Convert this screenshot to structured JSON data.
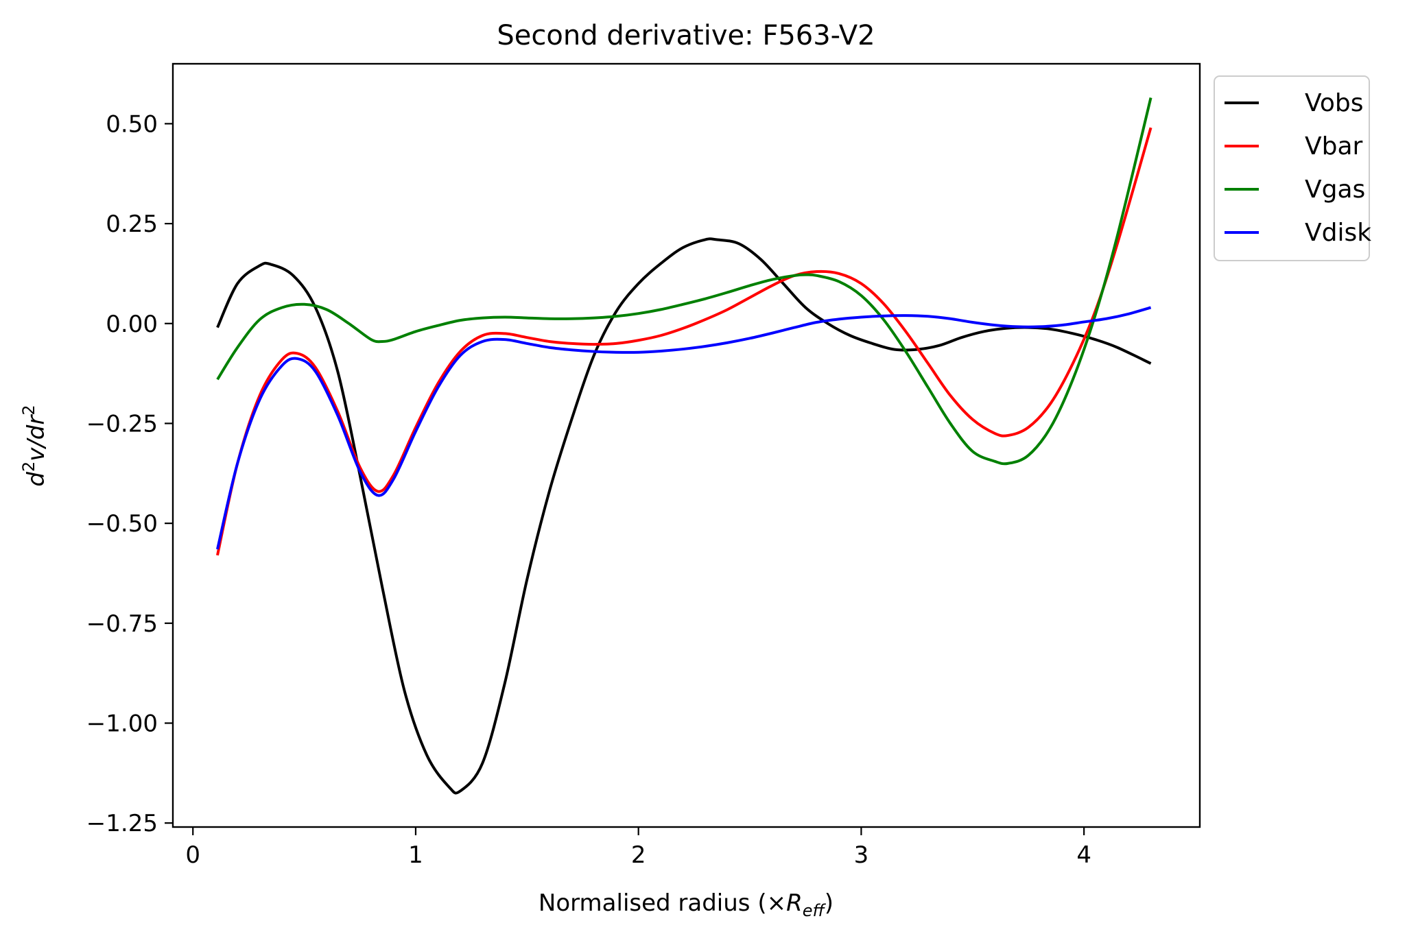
{
  "chart_data": {
    "type": "line",
    "title": "Second derivative: F563-V2",
    "xlabel": {
      "prefix": "Normalised radius (×",
      "var": "R",
      "sub": "eff",
      "suffix": ")"
    },
    "ylabel": {
      "d": "d",
      "sup1": "2",
      "mid": "v/dr",
      "sup2": "2"
    },
    "xlim": [
      -0.09,
      4.52
    ],
    "ylim": [
      -1.26,
      0.65
    ],
    "xticks": [
      0,
      1,
      2,
      3,
      4
    ],
    "xtick_labels": [
      "0",
      "1",
      "2",
      "3",
      "4"
    ],
    "yticks": [
      0.5,
      0.25,
      0.0,
      -0.25,
      -0.5,
      -0.75,
      -1.0,
      -1.25
    ],
    "ytick_labels": [
      "0.50",
      "0.25",
      "0.00",
      "−0.25",
      "−0.50",
      "−0.75",
      "−1.00",
      "−1.25"
    ],
    "grid": false,
    "legend_position": "outside-top-right",
    "series": [
      {
        "name": "Vobs",
        "color": "#000000",
        "x": [
          0.11,
          0.2,
          0.3,
          0.35,
          0.45,
          0.55,
          0.65,
          0.75,
          0.85,
          0.95,
          1.05,
          1.15,
          1.2,
          1.3,
          1.4,
          1.5,
          1.6,
          1.7,
          1.8,
          1.9,
          2.0,
          2.1,
          2.2,
          2.3,
          2.35,
          2.45,
          2.55,
          2.65,
          2.75,
          2.85,
          2.95,
          3.05,
          3.15,
          3.25,
          3.35,
          3.45,
          3.55,
          3.65,
          3.75,
          3.85,
          3.95,
          4.05,
          4.15,
          4.3
        ],
        "y": [
          -0.01,
          0.1,
          0.145,
          0.148,
          0.12,
          0.04,
          -0.12,
          -0.38,
          -0.66,
          -0.92,
          -1.08,
          -1.16,
          -1.17,
          -1.1,
          -0.9,
          -0.64,
          -0.42,
          -0.24,
          -0.08,
          0.03,
          0.1,
          0.15,
          0.19,
          0.21,
          0.21,
          0.2,
          0.16,
          0.1,
          0.04,
          0.0,
          -0.03,
          -0.05,
          -0.065,
          -0.065,
          -0.055,
          -0.035,
          -0.02,
          -0.012,
          -0.01,
          -0.014,
          -0.025,
          -0.04,
          -0.06,
          -0.1
        ]
      },
      {
        "name": "Vbar",
        "color": "#ff0000",
        "x": [
          0.11,
          0.2,
          0.3,
          0.4,
          0.47,
          0.55,
          0.65,
          0.75,
          0.83,
          0.9,
          1.0,
          1.1,
          1.2,
          1.3,
          1.4,
          1.5,
          1.6,
          1.7,
          1.8,
          1.9,
          2.0,
          2.1,
          2.2,
          2.3,
          2.4,
          2.5,
          2.6,
          2.7,
          2.8,
          2.9,
          3.0,
          3.1,
          3.2,
          3.3,
          3.4,
          3.5,
          3.6,
          3.66,
          3.75,
          3.85,
          3.95,
          4.05,
          4.15,
          4.3
        ],
        "y": [
          -0.58,
          -0.35,
          -0.18,
          -0.09,
          -0.075,
          -0.11,
          -0.22,
          -0.36,
          -0.42,
          -0.38,
          -0.26,
          -0.15,
          -0.07,
          -0.03,
          -0.025,
          -0.035,
          -0.045,
          -0.05,
          -0.052,
          -0.05,
          -0.042,
          -0.03,
          -0.012,
          0.01,
          0.035,
          0.065,
          0.095,
          0.12,
          0.13,
          0.125,
          0.1,
          0.05,
          -0.02,
          -0.1,
          -0.18,
          -0.24,
          -0.275,
          -0.28,
          -0.26,
          -0.2,
          -0.1,
          0.03,
          0.2,
          0.49
        ]
      },
      {
        "name": "Vgas",
        "color": "#008000",
        "x": [
          0.11,
          0.2,
          0.3,
          0.4,
          0.5,
          0.6,
          0.7,
          0.8,
          0.85,
          0.9,
          1.0,
          1.1,
          1.2,
          1.3,
          1.4,
          1.5,
          1.6,
          1.7,
          1.8,
          1.9,
          2.0,
          2.1,
          2.2,
          2.3,
          2.4,
          2.5,
          2.6,
          2.7,
          2.75,
          2.8,
          2.9,
          3.0,
          3.1,
          3.2,
          3.3,
          3.4,
          3.5,
          3.6,
          3.66,
          3.75,
          3.85,
          3.95,
          4.05,
          4.15,
          4.3
        ],
        "y": [
          -0.14,
          -0.06,
          0.01,
          0.04,
          0.048,
          0.035,
          0.0,
          -0.04,
          -0.045,
          -0.04,
          -0.02,
          -0.005,
          0.008,
          0.014,
          0.016,
          0.014,
          0.012,
          0.012,
          0.014,
          0.018,
          0.025,
          0.035,
          0.048,
          0.062,
          0.078,
          0.095,
          0.11,
          0.12,
          0.122,
          0.12,
          0.105,
          0.07,
          0.01,
          -0.07,
          -0.16,
          -0.25,
          -0.32,
          -0.345,
          -0.35,
          -0.33,
          -0.26,
          -0.14,
          0.02,
          0.22,
          0.565
        ]
      },
      {
        "name": "Vdisk",
        "color": "#0000ff",
        "x": [
          0.11,
          0.2,
          0.3,
          0.4,
          0.47,
          0.55,
          0.65,
          0.75,
          0.83,
          0.9,
          1.0,
          1.1,
          1.2,
          1.3,
          1.4,
          1.5,
          1.6,
          1.7,
          1.8,
          1.9,
          2.0,
          2.1,
          2.2,
          2.3,
          2.4,
          2.5,
          2.6,
          2.7,
          2.8,
          2.9,
          3.0,
          3.1,
          3.2,
          3.3,
          3.4,
          3.5,
          3.6,
          3.7,
          3.8,
          3.9,
          4.0,
          4.1,
          4.2,
          4.3
        ],
        "y": [
          -0.565,
          -0.35,
          -0.19,
          -0.105,
          -0.088,
          -0.12,
          -0.23,
          -0.37,
          -0.43,
          -0.39,
          -0.27,
          -0.16,
          -0.08,
          -0.045,
          -0.04,
          -0.05,
          -0.06,
          -0.066,
          -0.07,
          -0.072,
          -0.072,
          -0.069,
          -0.064,
          -0.057,
          -0.048,
          -0.037,
          -0.024,
          -0.01,
          0.003,
          0.011,
          0.016,
          0.019,
          0.02,
          0.018,
          0.012,
          0.003,
          -0.004,
          -0.008,
          -0.008,
          -0.004,
          0.004,
          0.012,
          0.024,
          0.04
        ]
      }
    ]
  }
}
